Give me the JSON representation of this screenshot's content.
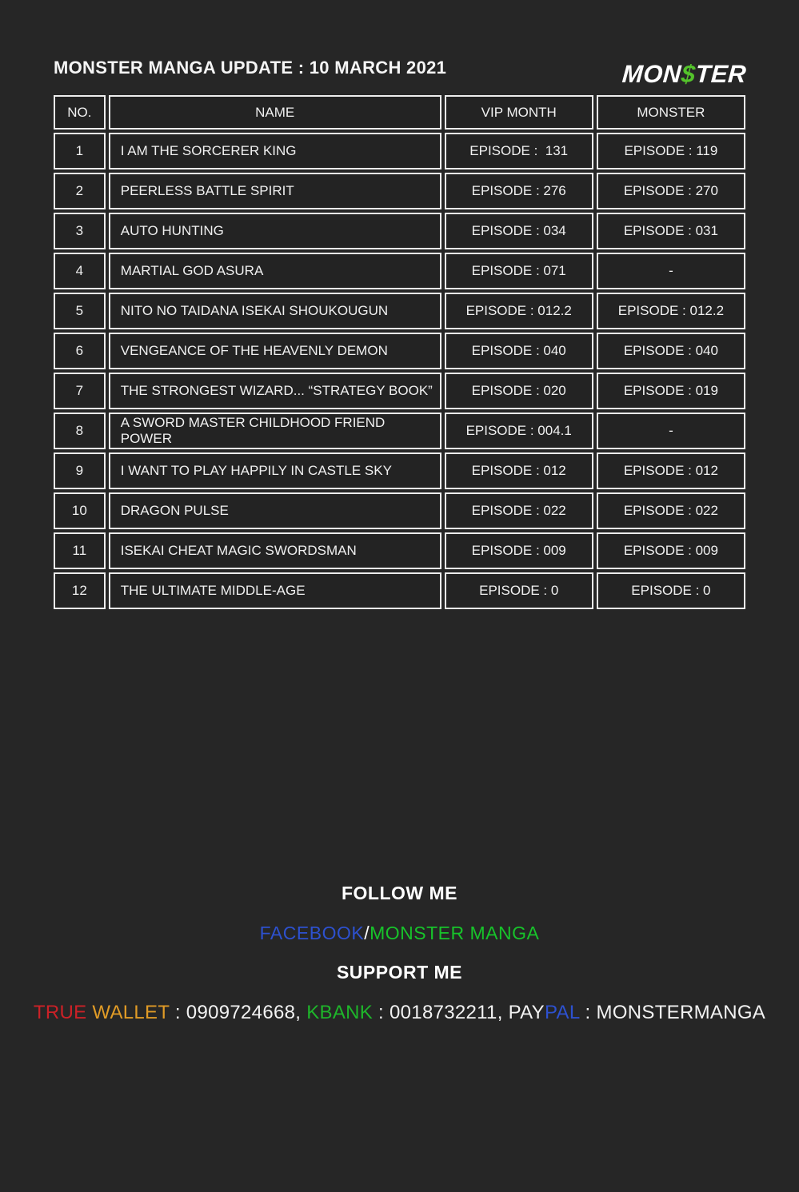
{
  "logo": {
    "prefix": "MON",
    "dollar": "$",
    "suffix": "TER"
  },
  "page_title": "MONSTER MANGA UPDATE : 10 MARCH 2021",
  "table": {
    "headers": {
      "no": "NO.",
      "name": "NAME",
      "vip": "VIP MONTH",
      "monster": "MONSTER"
    },
    "rows": [
      {
        "no": "1",
        "name": "I AM THE SORCERER KING",
        "vip": "EPISODE :  131",
        "monster": "EPISODE : 119"
      },
      {
        "no": "2",
        "name": "PEERLESS BATTLE SPIRIT",
        "vip": "EPISODE : 276",
        "monster": "EPISODE : 270"
      },
      {
        "no": "3",
        "name": "AUTO HUNTING",
        "vip": "EPISODE : 034",
        "monster": "EPISODE : 031"
      },
      {
        "no": "4",
        "name": "MARTIAL GOD ASURA",
        "vip": "EPISODE : 071",
        "monster": "-"
      },
      {
        "no": "5",
        "name": "NITO NO TAIDANA ISEKAI SHOUKOUGUN",
        "vip": "EPISODE : 012.2",
        "monster": "EPISODE : 012.2"
      },
      {
        "no": "6",
        "name": "VENGEANCE OF THE HEAVENLY DEMON",
        "vip": "EPISODE : 040",
        "monster": "EPISODE : 040"
      },
      {
        "no": "7",
        "name": "THE STRONGEST WIZARD... “STRATEGY BOOK”",
        "vip": "EPISODE : 020",
        "monster": "EPISODE : 019"
      },
      {
        "no": "8",
        "name": "A SWORD MASTER CHILDHOOD FRIEND POWER",
        "vip": "EPISODE : 004.1",
        "monster": "-"
      },
      {
        "no": "9",
        "name": "I WANT TO PLAY HAPPILY IN CASTLE SKY",
        "vip": "EPISODE : 012",
        "monster": "EPISODE : 012"
      },
      {
        "no": "10",
        "name": "DRAGON PULSE",
        "vip": "EPISODE : 022",
        "monster": "EPISODE : 022"
      },
      {
        "no": "11",
        "name": "ISEKAI CHEAT MAGIC SWORDSMAN",
        "vip": "EPISODE : 009",
        "monster": "EPISODE : 009"
      },
      {
        "no": "12",
        "name": "THE ULTIMATE MIDDLE-AGE",
        "vip": "EPISODE : 0",
        "monster": "EPISODE : 0"
      }
    ]
  },
  "footer": {
    "follow_me": "FOLLOW ME",
    "facebook_label": "FACEBOOK",
    "slash": "/",
    "monster_manga_label": "MONSTER MANGA",
    "support_me": "SUPPORT ME",
    "support_line": {
      "true_label": "TRUE ",
      "wallet_label": "WALLET",
      "wallet_value": " : 0909724668, ",
      "kbank_label": "KBANK",
      "kbank_value": " : 0018732211, PAY",
      "pal_label": "PAL",
      "paypal_value": " : MONSTERMANGA"
    }
  },
  "colors": {
    "background": "#262626",
    "cell_background": "#232323",
    "border": "#ededed",
    "logo_dollar_green": "#54c32b",
    "facebook_blue": "#2d51cf",
    "monster_manga_green": "#17c32a",
    "true_red": "#cc2127",
    "wallet_orange": "#e09b26",
    "kbank_green": "#1eb52a",
    "paypal_blue": "#2d51cf"
  }
}
